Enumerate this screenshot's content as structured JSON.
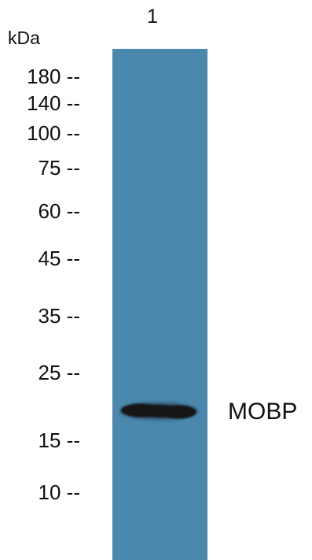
{
  "lane_label": "1",
  "unit_label": "kDa",
  "markers": [
    "180 --",
    "140 --",
    "100 --",
    "75 --",
    "60 --",
    "45 --",
    "35 --",
    "25 --",
    "15 --",
    "10 --"
  ],
  "band_label": "MOBP",
  "colors": {
    "lane": "#4a88ad",
    "band": "#151515"
  }
}
